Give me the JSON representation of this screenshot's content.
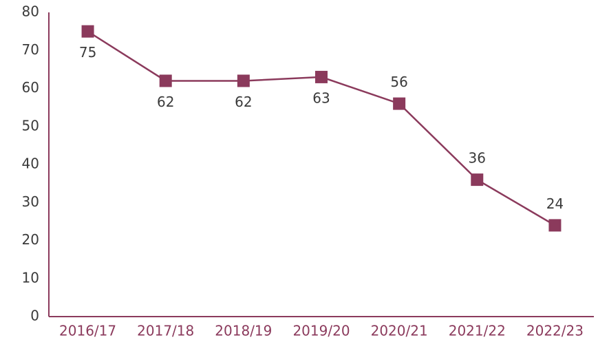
{
  "chart_data": {
    "type": "line",
    "categories": [
      "2016/17",
      "2017/18",
      "2018/19",
      "2019/20",
      "2020/21",
      "2021/22",
      "2022/23"
    ],
    "series": [
      {
        "name": "Value",
        "color": "#8b3a5c",
        "values": [
          75,
          62,
          62,
          63,
          56,
          36,
          24
        ]
      }
    ],
    "ylim": [
      0,
      80
    ],
    "yticks": [
      0,
      10,
      20,
      30,
      40,
      50,
      60,
      70,
      80
    ],
    "grid": false
  }
}
